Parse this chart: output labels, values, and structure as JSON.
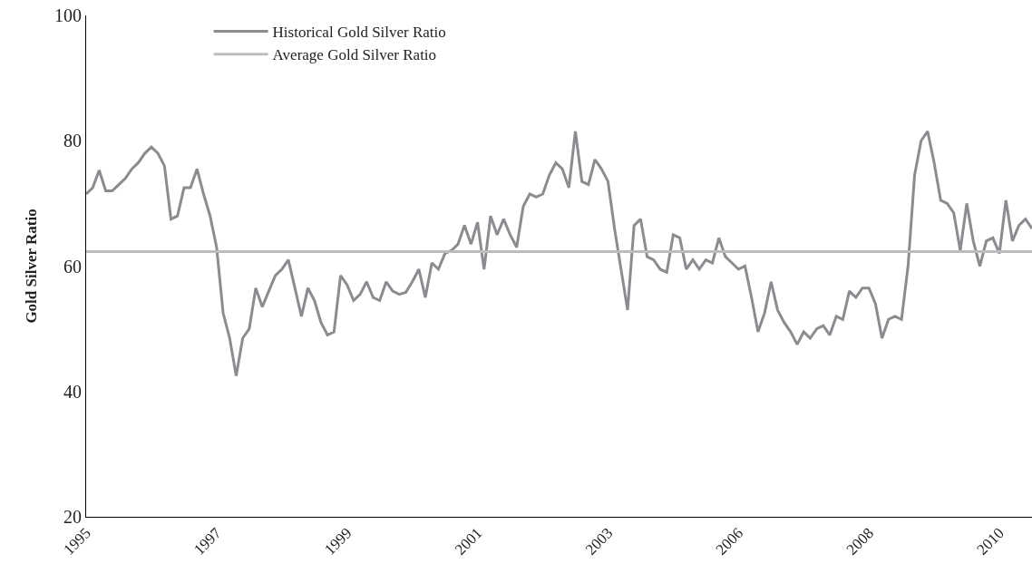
{
  "chart_data": {
    "type": "line",
    "ylabel": "Gold Silver Ratio",
    "categories": [
      "1995",
      null,
      null,
      null,
      null,
      null,
      null,
      null,
      null,
      null,
      null,
      null,
      null,
      null,
      null,
      null,
      null,
      null,
      null,
      null,
      "1997",
      null,
      null,
      null,
      null,
      null,
      null,
      null,
      null,
      null,
      null,
      null,
      null,
      null,
      null,
      null,
      null,
      null,
      null,
      null,
      "1999",
      null,
      null,
      null,
      null,
      null,
      null,
      null,
      null,
      null,
      null,
      null,
      null,
      null,
      null,
      null,
      null,
      null,
      null,
      null,
      "2001",
      null,
      null,
      null,
      null,
      null,
      null,
      null,
      null,
      null,
      null,
      null,
      null,
      null,
      null,
      null,
      null,
      null,
      null,
      null,
      "2003",
      null,
      null,
      null,
      null,
      null,
      null,
      null,
      null,
      null,
      null,
      null,
      null,
      null,
      null,
      null,
      null,
      null,
      null,
      null,
      "2006",
      null,
      null,
      null,
      null,
      null,
      null,
      null,
      null,
      null,
      null,
      null,
      null,
      null,
      null,
      null,
      null,
      null,
      null,
      null,
      "2008",
      null,
      null,
      null,
      null,
      null,
      null,
      null,
      null,
      null,
      null,
      null,
      null,
      null,
      null,
      null,
      null,
      null,
      null,
      null,
      "2010",
      null,
      null,
      null,
      null,
      null
    ],
    "series": [
      {
        "name": "Historical Gold Silver Ratio",
        "color": "#8b8c90",
        "values": [
          71.5,
          72.5,
          75.3,
          72,
          72,
          73,
          74,
          75.5,
          76.5,
          78,
          79,
          78,
          76,
          67.5,
          68,
          72.5,
          72.5,
          75.5,
          71.5,
          68,
          63,
          52.5,
          48.5,
          42.5,
          48.5,
          50,
          56.5,
          53.5,
          56,
          58.5,
          59.5,
          61,
          56.5,
          52,
          56.5,
          54.5,
          51,
          49,
          49.5,
          58.5,
          57,
          54.5,
          55.5,
          57.5,
          55,
          54.5,
          57.5,
          56,
          55.5,
          55.8,
          57.5,
          59.5,
          55,
          60.5,
          59.5,
          62,
          62.5,
          63.5,
          66.5,
          63.5,
          67,
          59.5,
          68,
          65,
          67.5,
          65,
          63,
          69.5,
          71.5,
          71,
          71.5,
          74.5,
          76.5,
          75.5,
          72.5,
          81.5,
          73.5,
          73,
          77,
          75.5,
          73.5,
          66,
          59.5,
          53,
          66.5,
          67.5,
          61.5,
          61,
          59.5,
          59,
          65,
          64.5,
          59.5,
          61,
          59.5,
          61,
          60.5,
          64.5,
          61.5,
          60.5,
          59.5,
          60,
          55,
          49.5,
          52.5,
          57.5,
          53,
          51,
          49.5,
          47.5,
          49.5,
          48.5,
          50,
          50.5,
          49,
          52,
          51.5,
          56,
          55,
          56.5,
          56.5,
          54,
          48.5,
          51.5,
          52,
          51.5,
          60,
          74.5,
          80,
          81.5,
          76.5,
          70.5,
          70,
          68.5,
          62.5,
          70,
          64,
          60,
          64,
          64.5,
          62,
          70.5,
          64,
          66.5,
          67.5,
          66
        ]
      }
    ],
    "ref_lines": [
      {
        "axis": "y",
        "value": 62.3,
        "label": "Average Gold Silver Ratio",
        "color": "#bcbcbe"
      }
    ],
    "ylim": [
      20,
      100
    ],
    "yticks": [
      20,
      40,
      60,
      80,
      100
    ],
    "legend": "top left",
    "marker": "none",
    "line_style": "solid"
  }
}
